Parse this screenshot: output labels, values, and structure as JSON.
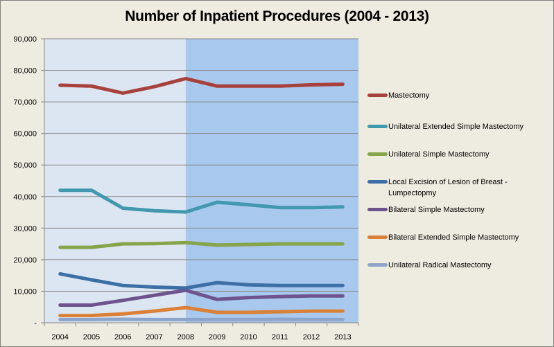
{
  "chart_data": {
    "type": "line",
    "title": "Number of Inpatient Procedures (2004 - 2013)",
    "xlabel": "",
    "ylabel": "",
    "ylim": [
      0,
      90000
    ],
    "yticks": [
      0,
      10000,
      20000,
      30000,
      40000,
      50000,
      60000,
      70000,
      80000,
      90000
    ],
    "ytick_labels": [
      "-",
      "10,000",
      "20,000",
      "30,000",
      "40,000",
      "50,000",
      "60,000",
      "70,000",
      "80,000",
      "90,000"
    ],
    "grid": true,
    "legend_position": "right",
    "background_bands": [
      {
        "from": "2004",
        "to": "2008",
        "color": "#DCE6F2"
      },
      {
        "from": "2008",
        "to": "2013",
        "color": "#A8C8EE"
      }
    ],
    "categories": [
      "2004",
      "2005",
      "2006",
      "2007",
      "2008",
      "2009",
      "2010",
      "2011",
      "2012",
      "2013"
    ],
    "series": [
      {
        "name": "Mastectomy",
        "color": "#A7413C",
        "values": [
          75300,
          75000,
          72800,
          74800,
          77400,
          75000,
          75000,
          75000,
          75400,
          75600
        ]
      },
      {
        "name": "Unilateral Extended Simple Mastectomy",
        "color": "#4198AF",
        "values": [
          42000,
          42000,
          36300,
          35500,
          35100,
          38200,
          37400,
          36500,
          36500,
          36700
        ]
      },
      {
        "name": "Unilateral Simple Mastectomy",
        "color": "#86A44A",
        "values": [
          23900,
          23900,
          25000,
          25100,
          25400,
          24600,
          24800,
          25000,
          25000,
          25000
        ]
      },
      {
        "name": "Local Excision of Lesion of Breast - Lumpectopmy",
        "color": "#3D6FA7",
        "values": [
          15500,
          13600,
          11800,
          11300,
          11000,
          12700,
          12000,
          11800,
          11800,
          11800
        ]
      },
      {
        "name": "Bilateral Simple Mastectomy",
        "color": "#6E548D",
        "values": [
          5600,
          5600,
          7100,
          8700,
          10300,
          7400,
          8000,
          8300,
          8500,
          8500
        ]
      },
      {
        "name": "Bilateral Extended Simple Mastectomy",
        "color": "#DA8137",
        "values": [
          2300,
          2300,
          2800,
          3700,
          4800,
          3300,
          3300,
          3500,
          3700,
          3700
        ]
      },
      {
        "name": "Unilateral Radical Mastectomy",
        "color": "#8EA5CB",
        "values": [
          1000,
          1000,
          1100,
          1000,
          1000,
          1000,
          1000,
          1100,
          1000,
          1000
        ]
      }
    ]
  },
  "legend": {
    "items": [
      {
        "label": "Mastectomy"
      },
      {
        "label": "Unilateral Extended Simple Mastectomy"
      },
      {
        "label": "Unilateral Simple Mastectomy"
      },
      {
        "label": "Local Excision of Lesion of Breast - Lumpectopmy"
      },
      {
        "label": "Bilateral Simple Mastectomy"
      },
      {
        "label": "Bilateral Extended Simple Mastectomy"
      },
      {
        "label": "Unilateral Radical Mastectomy"
      }
    ]
  }
}
